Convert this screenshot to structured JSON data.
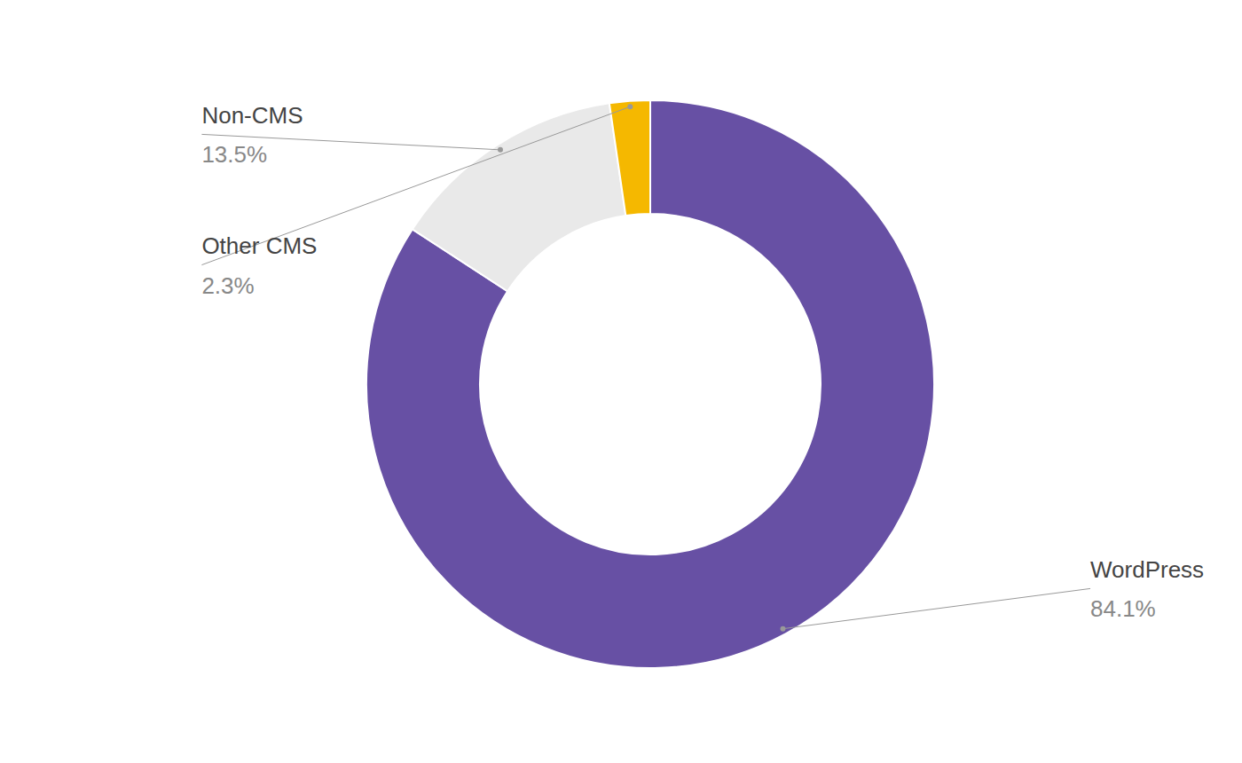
{
  "chart_data": {
    "type": "pie",
    "categories": [
      "WordPress",
      "Non-CMS",
      "Other CMS"
    ],
    "values": [
      84.1,
      13.5,
      2.3
    ],
    "value_labels": [
      "84.1%",
      "13.5%",
      "2.3%"
    ],
    "colors": [
      "#6750a4",
      "#e9e9e9",
      "#f5b800"
    ],
    "data_labels": true
  }
}
